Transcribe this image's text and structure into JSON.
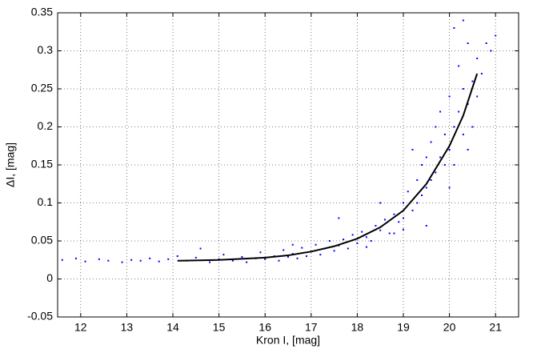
{
  "chart_data": {
    "type": "scatter",
    "xlabel": "Kron I, [mag]",
    "ylabel": "ΔI, [mag]",
    "xlim": [
      11.5,
      21.5
    ],
    "ylim": [
      -0.05,
      0.35
    ],
    "xticks": [
      12,
      13,
      14,
      15,
      16,
      17,
      18,
      19,
      20,
      21
    ],
    "yticks": [
      -0.05,
      0,
      0.05,
      0.1,
      0.15,
      0.2,
      0.25,
      0.3,
      0.35
    ],
    "grid": true,
    "series": [
      {
        "type": "scatter",
        "color": "#0000ff",
        "x": [
          11.6,
          11.9,
          12.1,
          12.4,
          12.6,
          12.9,
          13.1,
          13.3,
          13.5,
          13.7,
          13.9,
          14.1,
          14.3,
          14.5,
          14.6,
          14.8,
          15.0,
          15.1,
          15.3,
          15.5,
          15.6,
          15.8,
          15.9,
          16.0,
          16.2,
          16.3,
          16.4,
          16.5,
          16.6,
          16.7,
          16.8,
          16.9,
          17.0,
          17.1,
          17.2,
          17.3,
          17.4,
          17.5,
          17.6,
          17.7,
          17.8,
          17.9,
          18.0,
          18.1,
          18.2,
          18.3,
          18.4,
          18.5,
          18.6,
          18.7,
          18.8,
          18.9,
          19.0,
          19.0,
          19.1,
          19.2,
          19.3,
          19.3,
          19.4,
          19.4,
          19.5,
          19.5,
          19.6,
          19.6,
          19.7,
          19.7,
          19.8,
          19.8,
          19.9,
          19.9,
          20.0,
          20.0,
          20.1,
          20.1,
          20.2,
          20.2,
          20.3,
          20.3,
          20.4,
          20.4,
          20.5,
          20.5,
          20.6,
          20.6,
          20.7,
          20.8,
          20.9,
          21.0,
          20.1,
          20.3,
          19.2,
          18.5,
          17.6,
          16.6,
          19.5,
          18.8,
          20.0,
          20.4,
          19.0,
          18.2
        ],
        "values": [
          0.025,
          0.027,
          0.023,
          0.026,
          0.024,
          0.022,
          0.025,
          0.024,
          0.027,
          0.023,
          0.026,
          0.03,
          0.024,
          0.028,
          0.04,
          0.022,
          0.026,
          0.032,
          0.024,
          0.029,
          0.022,
          0.027,
          0.035,
          0.026,
          0.03,
          0.024,
          0.038,
          0.029,
          0.033,
          0.027,
          0.041,
          0.03,
          0.036,
          0.045,
          0.032,
          0.04,
          0.05,
          0.037,
          0.044,
          0.052,
          0.04,
          0.058,
          0.047,
          0.062,
          0.055,
          0.05,
          0.07,
          0.064,
          0.078,
          0.06,
          0.085,
          0.075,
          0.1,
          0.08,
          0.115,
          0.09,
          0.13,
          0.1,
          0.11,
          0.15,
          0.12,
          0.16,
          0.13,
          0.18,
          0.14,
          0.2,
          0.16,
          0.22,
          0.15,
          0.19,
          0.17,
          0.24,
          0.2,
          0.15,
          0.22,
          0.28,
          0.19,
          0.25,
          0.23,
          0.31,
          0.26,
          0.2,
          0.29,
          0.24,
          0.27,
          0.31,
          0.3,
          0.32,
          0.33,
          0.34,
          0.17,
          0.1,
          0.08,
          0.045,
          0.07,
          0.06,
          0.12,
          0.17,
          0.065,
          0.042
        ]
      },
      {
        "type": "line",
        "color": "#000000",
        "x": [
          14.1,
          15,
          16,
          16.5,
          17,
          17.5,
          18,
          18.5,
          19,
          19.5,
          20,
          20.3,
          20.6
        ],
        "values": [
          0.024,
          0.025,
          0.028,
          0.031,
          0.036,
          0.043,
          0.053,
          0.068,
          0.09,
          0.125,
          0.175,
          0.215,
          0.27
        ]
      }
    ]
  }
}
